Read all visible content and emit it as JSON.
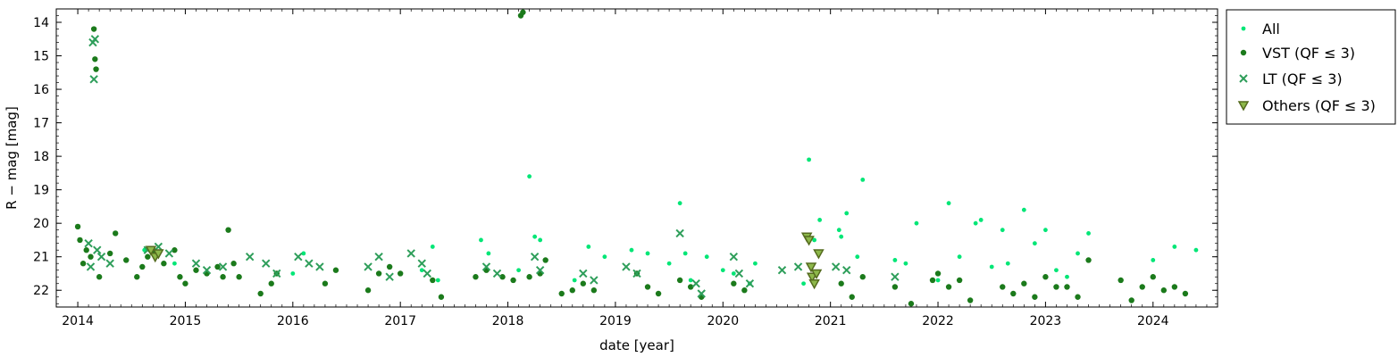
{
  "chart_data": {
    "type": "scatter",
    "title": "",
    "xlabel": "date [year]",
    "ylabel": "R − mag [mag]",
    "xlim": [
      2013.8,
      2024.6
    ],
    "ylim": [
      22.5,
      13.6
    ],
    "y_inverted": true,
    "xticks": [
      "2014",
      "2015",
      "2016",
      "2017",
      "2018",
      "2019",
      "2020",
      "2021",
      "2022",
      "2023",
      "2024"
    ],
    "yticks": [
      "14",
      "15",
      "16",
      "17",
      "18",
      "19",
      "20",
      "21",
      "22"
    ],
    "grid": false,
    "legend_position": "outside-right-top",
    "colors": {
      "all": "#00e676",
      "vst": "#1b7a1b",
      "lt": "#2e9e5a",
      "others_edge": "#556b1f"
    },
    "legend": [
      {
        "key": "all",
        "label": "All",
        "marker": "dot-small"
      },
      {
        "key": "vst",
        "label": "VST (QF ≤ 3)",
        "marker": "dot"
      },
      {
        "key": "lt",
        "label": "LT (QF ≤ 3)",
        "marker": "x"
      },
      {
        "key": "others",
        "label": "Others (QF ≤ 3)",
        "marker": "triangle-down"
      }
    ],
    "series": [
      {
        "key": "all",
        "name": "All",
        "x": [
          2014.62,
          2014.7,
          2014.9,
          2016.0,
          2016.1,
          2017.2,
          2017.3,
          2017.35,
          2017.75,
          2017.82,
          2018.1,
          2018.2,
          2018.25,
          2018.3,
          2018.62,
          2018.75,
          2018.9,
          2019.15,
          2019.3,
          2019.5,
          2019.6,
          2019.65,
          2019.7,
          2019.85,
          2020.0,
          2020.1,
          2020.25,
          2020.3,
          2020.75,
          2020.8,
          2020.85,
          2020.9,
          2021.08,
          2021.1,
          2021.15,
          2021.25,
          2021.3,
          2021.6,
          2021.7,
          2021.8,
          2022.0,
          2022.1,
          2022.2,
          2022.35,
          2022.4,
          2022.5,
          2022.6,
          2022.65,
          2022.8,
          2022.9,
          2023.0,
          2023.1,
          2023.2,
          2023.3,
          2023.4,
          2024.0,
          2024.2,
          2024.4
        ],
        "y": [
          20.8,
          20.9,
          21.2,
          21.5,
          20.9,
          21.4,
          20.7,
          21.7,
          20.5,
          20.9,
          21.4,
          18.6,
          20.4,
          20.5,
          21.7,
          20.7,
          21.0,
          20.8,
          20.9,
          21.2,
          19.4,
          20.9,
          21.7,
          21.0,
          21.4,
          21.5,
          21.8,
          21.2,
          21.8,
          18.1,
          20.5,
          19.9,
          20.2,
          20.4,
          19.7,
          21.0,
          18.7,
          21.1,
          21.2,
          20.0,
          21.7,
          19.4,
          21.0,
          20.0,
          19.9,
          21.3,
          20.2,
          21.2,
          19.6,
          20.6,
          20.2,
          21.4,
          21.6,
          20.9,
          20.3,
          21.1,
          20.7,
          20.8
        ]
      },
      {
        "key": "vst",
        "name": "VST (QF ≤ 3)",
        "x": [
          2014.0,
          2014.02,
          2014.05,
          2014.08,
          2014.12,
          2014.15,
          2014.16,
          2014.17,
          2014.2,
          2014.3,
          2014.35,
          2014.45,
          2014.55,
          2014.6,
          2014.65,
          2014.7,
          2014.8,
          2014.9,
          2014.95,
          2015.0,
          2015.1,
          2015.2,
          2015.3,
          2015.35,
          2015.4,
          2015.45,
          2015.5,
          2015.7,
          2015.8,
          2015.85,
          2016.3,
          2016.4,
          2016.7,
          2016.8,
          2016.9,
          2017.0,
          2017.3,
          2017.38,
          2017.7,
          2017.8,
          2017.95,
          2018.05,
          2018.12,
          2018.14,
          2018.2,
          2018.3,
          2018.35,
          2018.5,
          2018.6,
          2018.7,
          2018.8,
          2019.2,
          2019.3,
          2019.4,
          2019.6,
          2019.7,
          2019.8,
          2020.1,
          2020.2,
          2021.1,
          2021.2,
          2021.3,
          2021.6,
          2021.75,
          2021.95,
          2022.0,
          2022.1,
          2022.2,
          2022.3,
          2022.6,
          2022.7,
          2022.8,
          2022.9,
          2023.0,
          2023.1,
          2023.2,
          2023.3,
          2023.4,
          2023.7,
          2023.8,
          2023.9,
          2024.0,
          2024.1,
          2024.2,
          2024.3
        ],
        "y": [
          20.1,
          20.5,
          21.2,
          20.8,
          21.0,
          14.2,
          15.1,
          15.4,
          21.6,
          20.9,
          20.3,
          21.1,
          21.6,
          21.3,
          21.0,
          20.8,
          21.2,
          20.8,
          21.6,
          21.8,
          21.4,
          21.5,
          21.3,
          21.6,
          20.2,
          21.2,
          21.6,
          22.1,
          21.8,
          21.5,
          21.8,
          21.4,
          22.0,
          21.5,
          21.3,
          21.5,
          21.7,
          22.2,
          21.6,
          21.4,
          21.6,
          21.7,
          13.8,
          13.7,
          21.6,
          21.5,
          21.1,
          22.1,
          22.0,
          21.8,
          22.0,
          21.5,
          21.9,
          22.1,
          21.7,
          21.9,
          22.2,
          21.8,
          22.0,
          21.8,
          22.2,
          21.6,
          21.9,
          22.4,
          21.7,
          21.5,
          21.9,
          21.7,
          22.3,
          21.9,
          22.1,
          21.8,
          22.2,
          21.6,
          21.9,
          21.9,
          22.2,
          21.1,
          21.7,
          22.3,
          21.9,
          21.6,
          22.0,
          21.9,
          22.1
        ]
      },
      {
        "key": "lt",
        "name": "LT (QF ≤ 3)",
        "x": [
          2014.1,
          2014.12,
          2014.14,
          2014.15,
          2014.16,
          2014.18,
          2014.22,
          2014.3,
          2014.65,
          2014.75,
          2014.85,
          2015.1,
          2015.2,
          2015.35,
          2015.6,
          2015.75,
          2015.85,
          2016.05,
          2016.15,
          2016.25,
          2016.7,
          2016.8,
          2016.9,
          2017.1,
          2017.2,
          2017.25,
          2017.8,
          2017.9,
          2018.25,
          2018.3,
          2018.7,
          2018.8,
          2019.1,
          2019.2,
          2019.6,
          2019.75,
          2019.8,
          2020.1,
          2020.15,
          2020.25,
          2020.55,
          2020.7,
          2021.05,
          2021.15,
          2021.6
        ],
        "y": [
          20.6,
          21.3,
          14.6,
          15.7,
          14.5,
          20.8,
          21.0,
          21.2,
          20.8,
          20.7,
          20.9,
          21.2,
          21.4,
          21.3,
          21.0,
          21.2,
          21.5,
          21.0,
          21.2,
          21.3,
          21.3,
          21.0,
          21.6,
          20.9,
          21.2,
          21.5,
          21.3,
          21.5,
          21.0,
          21.4,
          21.5,
          21.7,
          21.3,
          21.5,
          20.3,
          21.8,
          22.1,
          21.0,
          21.5,
          21.8,
          21.4,
          21.3,
          21.3,
          21.4,
          21.6
        ]
      },
      {
        "key": "others",
        "name": "Others (QF ≤ 3)",
        "x": [
          2014.68,
          2014.72,
          2014.75,
          2020.78,
          2020.8,
          2020.82,
          2020.83,
          2020.85,
          2020.87,
          2020.89
        ],
        "y": [
          20.8,
          21.0,
          20.9,
          20.4,
          20.5,
          21.3,
          21.6,
          21.8,
          21.5,
          20.9
        ]
      }
    ]
  }
}
